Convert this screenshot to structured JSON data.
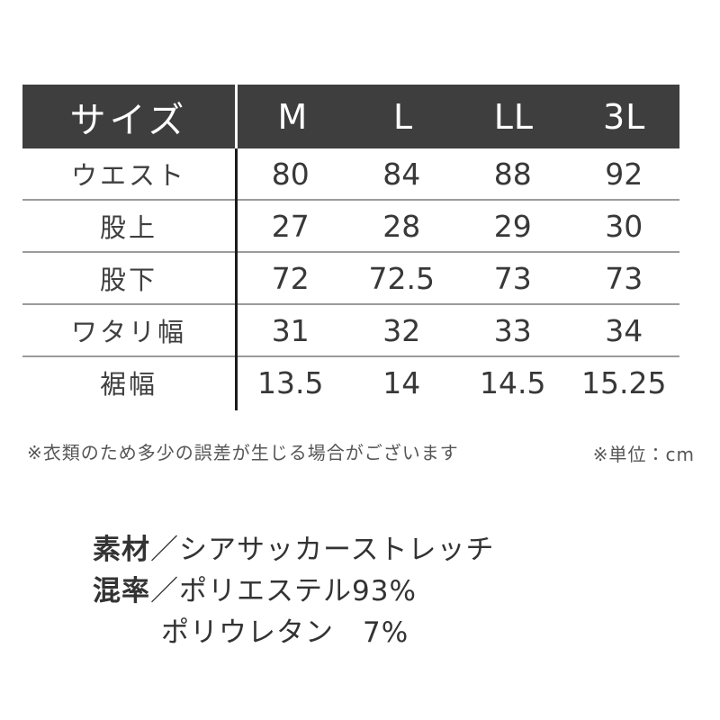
{
  "table": {
    "header": {
      "label": "サイズ",
      "columns": [
        "M",
        "L",
        "LL",
        "3L"
      ]
    },
    "rows": [
      {
        "label": "ウエスト",
        "values": [
          "80",
          "84",
          "88",
          "92"
        ]
      },
      {
        "label": "股上",
        "values": [
          "27",
          "28",
          "29",
          "30"
        ]
      },
      {
        "label": "股下",
        "values": [
          "72",
          "72.5",
          "73",
          "73"
        ]
      },
      {
        "label": "ワタリ幅",
        "values": [
          "31",
          "32",
          "33",
          "34"
        ]
      },
      {
        "label": "裾幅",
        "values": [
          "13.5",
          "14",
          "14.5",
          "15.25"
        ]
      }
    ]
  },
  "notes": {
    "disclaimer": "※衣類のため多少の誤差が生じる場合がございます",
    "unit": "※単位：cm"
  },
  "material": {
    "material_label": "素材",
    "material_value": "／シアサッカーストレッチ",
    "blend_label": "混率",
    "blend_value": "／ポリエステル93%",
    "blend_value2": "ポリウレタン　7%"
  },
  "colors": {
    "header_bg": "#3e3e3e",
    "header_text": "#ffffff",
    "body_text": "#383838",
    "row_separator": "#9b9b9b",
    "column_divider": "#1b1b1b",
    "note_text": "#565656"
  }
}
